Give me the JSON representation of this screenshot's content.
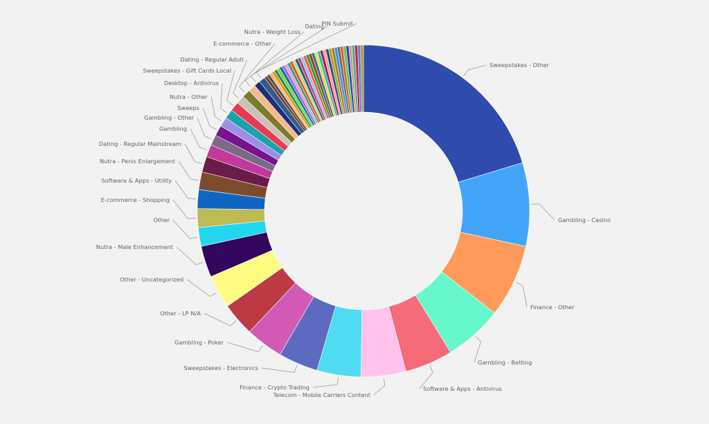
{
  "chart_data": {
    "type": "donut",
    "unit": "percent of total",
    "labeled_slices": [
      {
        "label": "Sweepstakes - Other",
        "value": 20.0,
        "color": "#2e4bad"
      },
      {
        "label": "Gambling - Casino",
        "value": 8.0,
        "color": "#42a5fa"
      },
      {
        "label": "Finance - Other",
        "value": 7.0,
        "color": "#ff9a5c"
      },
      {
        "label": "Gambling - Betting",
        "value": 5.6,
        "color": "#66f7ca"
      },
      {
        "label": "Software & Apps - Antivirus",
        "value": 4.6,
        "color": "#f66b79"
      },
      {
        "label": "Telecom - Mobile Carriers Content",
        "value": 4.3,
        "color": "#ffc3ee"
      },
      {
        "label": "Finance - Crypto Trading",
        "value": 4.2,
        "color": "#4fdcf2"
      },
      {
        "label": "Sweepstakes - Electronics",
        "value": 3.8,
        "color": "#5c6bc0"
      },
      {
        "label": "Gambling - Poker",
        "value": 3.6,
        "color": "#d35ab4"
      },
      {
        "label": "Other - LP N/A",
        "value": 3.2,
        "color": "#bb3a44"
      },
      {
        "label": "Other - Uncategorized",
        "value": 3.2,
        "color": "#fefd81"
      },
      {
        "label": "Nutra - Male Enhancement",
        "value": 3.0,
        "color": "#33055e"
      },
      {
        "label": "Other",
        "value": 1.8,
        "color": "#1fd8ef"
      },
      {
        "label": "E-commerce - Shopping",
        "value": 1.8,
        "color": "#bdbb54"
      },
      {
        "label": "Software & Apps - Utility",
        "value": 1.8,
        "color": "#0f66c2"
      },
      {
        "label": "Nutra - Penis Enlargement",
        "value": 1.7,
        "color": "#7e4a2d"
      },
      {
        "label": "Dating - Regular Mainstream",
        "value": 1.5,
        "color": "#6b1b47"
      },
      {
        "label": "Gambling",
        "value": 1.2,
        "color": "#c2399d"
      },
      {
        "label": "Gambling - Other",
        "value": 1.0,
        "color": "#7a6a86"
      },
      {
        "label": "Sweeps",
        "value": 1.0,
        "color": "#7a128f"
      },
      {
        "label": "Nutra - Other",
        "value": 0.9,
        "color": "#9c8fe8"
      },
      {
        "label": "Desktop - Antivirus",
        "value": 0.9,
        "color": "#1aa3a8"
      },
      {
        "label": "Sweepstakes - Gift Cards Local",
        "value": 0.9,
        "color": "#e83b52"
      },
      {
        "label": "Dating - Regular Adult",
        "value": 0.8,
        "color": "#c9c2b8"
      },
      {
        "label": "E-commerce - Other",
        "value": 0.8,
        "color": "#7c7c2d"
      },
      {
        "label": "Nutra - Weight Loss",
        "value": 0.7,
        "color": "#f5b98a"
      },
      {
        "label": "Dating",
        "value": 0.6,
        "color": "#1c2f78"
      },
      {
        "label": "PIN Submit",
        "value": 0.6,
        "color": "#2b5f8a"
      }
    ],
    "unlabeled_slice_colors": [
      "#8b2b2b",
      "#4d4d4d",
      "#e8c35a",
      "#f08a24",
      "#1b8f5a",
      "#6fdc2b",
      "#0b6ea8",
      "#9b6ad4",
      "#d9a3c3",
      "#4b8f8c",
      "#d45a28",
      "#b8e07a",
      "#335577",
      "#c04080",
      "#86c5f0",
      "#ff5050",
      "#2aa02a",
      "#805020",
      "#5060a0",
      "#e0e050",
      "#30c0a0",
      "#a02060",
      "#f0a0a0",
      "#404080",
      "#90b030",
      "#c07030",
      "#20a0e0",
      "#806080",
      "#e06020",
      "#50d050",
      "#3040c0",
      "#d0a070",
      "#60a0a0",
      "#b03030",
      "#7070f0",
      "#a0a030"
    ],
    "unlabeled_total": 10.0,
    "legend": "none"
  }
}
